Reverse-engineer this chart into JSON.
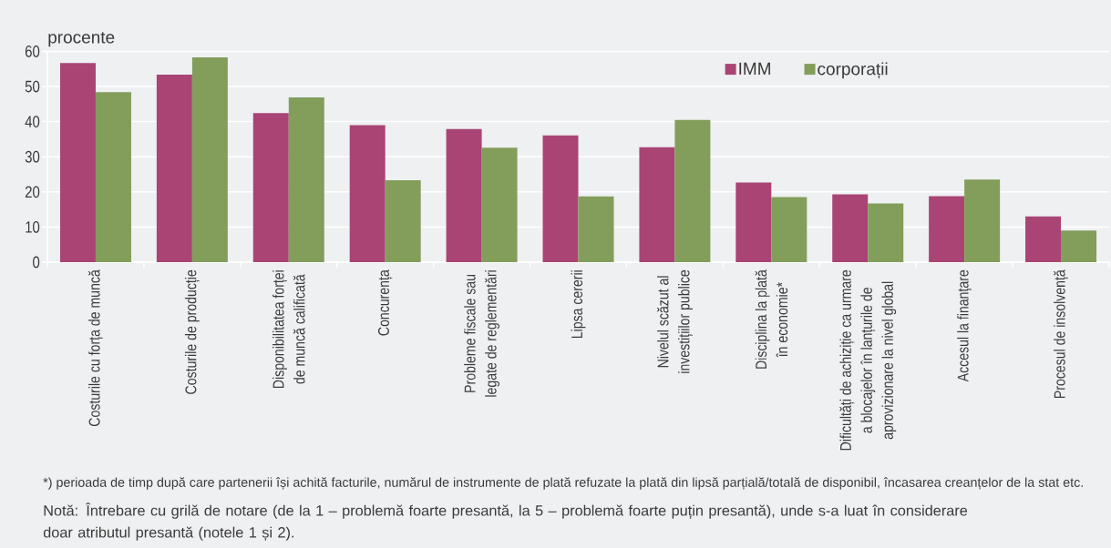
{
  "chart_data": {
    "type": "bar",
    "ylabel": "procente",
    "categories": [
      "Costurile cu forța de muncă",
      "Costurile de producție",
      "Disponibilitatea forței de muncă calificată",
      "Concurența",
      "Probleme fiscale sau legate de reglementări",
      "Lipsa cererii",
      "Nivelul scăzut al investițiilor publice",
      "Disciplina la plată în economie*",
      "Dificultăți de achiziție ca urmare a blocajelor în lanțurile de aprovizionare la nivel global",
      "Accesul la finanțare",
      "Procesul de insolvență"
    ],
    "series": [
      {
        "name": "IMM",
        "color": "#a94475",
        "values": [
          56.7,
          53.4,
          42.4,
          39.0,
          37.9,
          36.1,
          32.7,
          22.7,
          19.3,
          18.8,
          13.0
        ]
      },
      {
        "name": "corporații",
        "color": "#829e5a",
        "values": [
          48.4,
          58.3,
          46.9,
          23.3,
          32.6,
          18.7,
          40.5,
          18.5,
          16.7,
          23.5,
          9.0
        ]
      }
    ],
    "ylim": [
      0,
      60
    ],
    "yticks": [
      0,
      10,
      20,
      30,
      40,
      50,
      60
    ],
    "grid": "y",
    "legend": "top right",
    "annotations": [
      "*) perioada de timp după care partenerii își achită facturile, numărul de instrumente de plată refuzate la plată din lipsă parțială/totală de disponibil, încasarea creanțelor de la stat etc.",
      "Notă: Întrebare cu grilă de notare (de la 1 – problemă foarte presantă, la 5 – problemă foarte puțin presantă), unde s-a luat în considerare doar atributul presantă (notele 1 și 2)."
    ]
  }
}
